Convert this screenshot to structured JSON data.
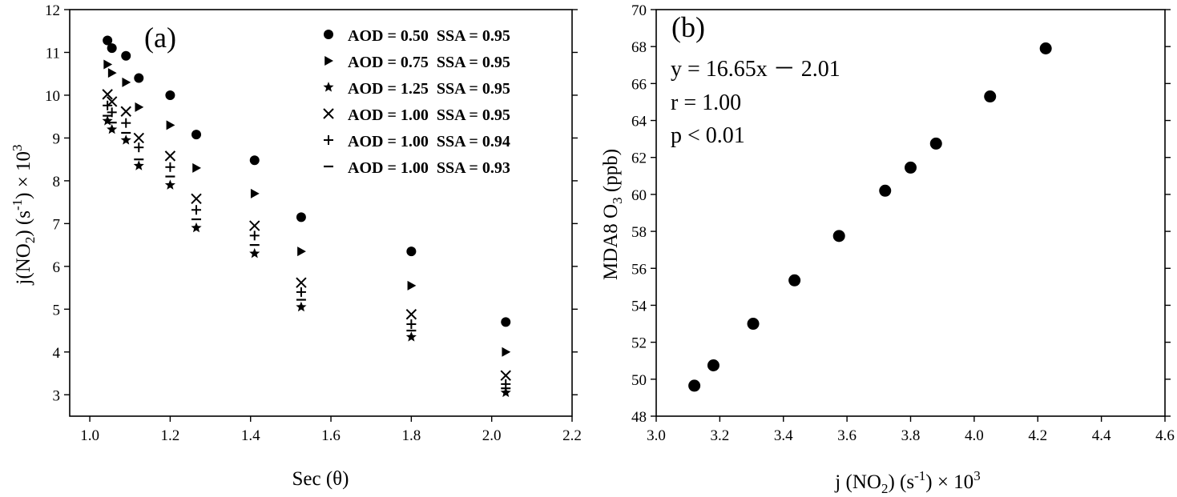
{
  "chart_data": [
    {
      "type": "scatter",
      "panel_label": "(a)",
      "xlabel": "Sec (θ)",
      "ylabel": {
        "base": "j(NO",
        "sub": "2",
        "mid": ") (s",
        "sup": "-1",
        "tail": ") × 10",
        "sup2": "3"
      },
      "xlim": [
        0.95,
        2.2
      ],
      "ylim": [
        2.5,
        12
      ],
      "xticks": [
        "1.0",
        "1.2",
        "1.4",
        "1.6",
        "1.8",
        "2.0",
        "2.2"
      ],
      "yticks": [
        "3",
        "4",
        "5",
        "6",
        "7",
        "8",
        "9",
        "10",
        "11",
        "12"
      ],
      "xtick_values": [
        1.0,
        1.2,
        1.4,
        1.6,
        1.8,
        2.0,
        2.2
      ],
      "ytick_values": [
        3,
        4,
        5,
        6,
        7,
        8,
        9,
        10,
        11,
        12
      ],
      "x": [
        1.044,
        1.055,
        1.09,
        1.122,
        1.2,
        1.265,
        1.41,
        1.526,
        1.8,
        2.035
      ],
      "legend_position": "top-right",
      "series": [
        {
          "name": "AOD = 0.50  SSA = 0.95",
          "marker": "circle",
          "values": [
            11.28,
            11.1,
            10.92,
            10.4,
            10.0,
            9.08,
            8.48,
            7.15,
            6.35,
            4.7
          ]
        },
        {
          "name": "AOD = 0.75  SSA = 0.95",
          "marker": "triangle-right",
          "values": [
            10.72,
            10.52,
            10.3,
            9.72,
            9.3,
            8.3,
            7.7,
            6.35,
            5.55,
            4.0
          ]
        },
        {
          "name": "AOD = 1.25  SSA = 0.95",
          "marker": "star",
          "values": [
            9.4,
            9.2,
            8.95,
            8.35,
            7.9,
            6.9,
            6.3,
            5.05,
            4.35,
            3.05
          ]
        },
        {
          "name": "AOD = 1.00  SSA = 0.95",
          "marker": "x",
          "values": [
            10.02,
            9.85,
            9.62,
            9.0,
            8.58,
            7.58,
            6.95,
            5.62,
            4.88,
            3.45
          ]
        },
        {
          "name": "AOD = 1.00  SSA = 0.94",
          "marker": "plus",
          "values": [
            9.76,
            9.6,
            9.35,
            8.78,
            8.32,
            7.32,
            6.72,
            5.4,
            4.65,
            3.25
          ]
        },
        {
          "name": "AOD = 1.00  SSA = 0.93",
          "marker": "dash",
          "values": [
            9.52,
            9.36,
            9.12,
            8.5,
            8.1,
            7.1,
            6.5,
            5.22,
            4.5,
            3.15
          ]
        }
      ]
    },
    {
      "type": "scatter",
      "panel_label": "(b)",
      "xlabel": {
        "base": "j (NO",
        "sub": "2",
        "mid": ") (s",
        "sup": "-1",
        "tail": ") × 10",
        "sup2": "3"
      },
      "ylabel": {
        "base": "MDA8 O",
        "sub": "3",
        "tail": " (ppb)"
      },
      "xlim": [
        3.0,
        4.6
      ],
      "ylim": [
        48,
        70
      ],
      "xticks": [
        "3.0",
        "3.2",
        "3.4",
        "3.6",
        "3.8",
        "4.0",
        "4.2",
        "4.4",
        "4.6"
      ],
      "yticks": [
        "48",
        "50",
        "52",
        "54",
        "56",
        "58",
        "60",
        "62",
        "64",
        "66",
        "68",
        "70"
      ],
      "xtick_values": [
        3.0,
        3.2,
        3.4,
        3.6,
        3.8,
        4.0,
        4.2,
        4.4,
        4.6
      ],
      "ytick_values": [
        48,
        50,
        52,
        54,
        56,
        58,
        60,
        62,
        64,
        66,
        68,
        70
      ],
      "x": [
        3.12,
        3.18,
        3.305,
        3.435,
        3.575,
        3.72,
        3.8,
        3.88,
        4.05,
        4.225
      ],
      "y": [
        49.65,
        50.75,
        53.0,
        55.35,
        57.75,
        60.2,
        61.45,
        62.75,
        65.3,
        67.9
      ],
      "annotations": [
        "y = 16.65x － 2.01",
        "r = 1.00",
        "p < 0.01"
      ]
    }
  ]
}
